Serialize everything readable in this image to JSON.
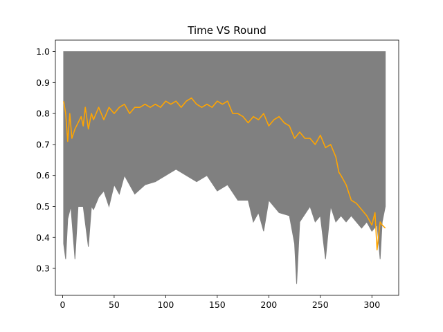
{
  "chart_data": {
    "type": "line",
    "title": "Time VS Round",
    "xlabel": "",
    "ylabel": "",
    "xlim": [
      -7,
      326
    ],
    "ylim": [
      0.213,
      1.037
    ],
    "xticks": [
      0,
      50,
      100,
      150,
      200,
      250,
      300
    ],
    "yticks": [
      0.3,
      0.4,
      0.5,
      0.6,
      0.7,
      0.8,
      0.9,
      1.0
    ],
    "grid": false,
    "legend": "none",
    "band": {
      "color": "#808080",
      "x": [
        1,
        3,
        5,
        8,
        12,
        15,
        20,
        25,
        28,
        30,
        35,
        40,
        45,
        50,
        55,
        60,
        70,
        80,
        90,
        100,
        110,
        120,
        130,
        140,
        150,
        160,
        170,
        180,
        185,
        190,
        195,
        200,
        210,
        220,
        225,
        227,
        230,
        240,
        245,
        250,
        255,
        260,
        265,
        270,
        275,
        280,
        285,
        290,
        295,
        300,
        305,
        308,
        310,
        313
      ],
      "lower": [
        0.38,
        0.33,
        0.46,
        0.5,
        0.33,
        0.5,
        0.5,
        0.37,
        0.5,
        0.49,
        0.53,
        0.55,
        0.5,
        0.57,
        0.54,
        0.6,
        0.54,
        0.57,
        0.58,
        0.6,
        0.62,
        0.6,
        0.58,
        0.6,
        0.55,
        0.57,
        0.52,
        0.52,
        0.45,
        0.48,
        0.42,
        0.52,
        0.48,
        0.47,
        0.38,
        0.25,
        0.45,
        0.5,
        0.45,
        0.47,
        0.33,
        0.5,
        0.45,
        0.47,
        0.45,
        0.47,
        0.45,
        0.43,
        0.45,
        0.42,
        0.44,
        0.33,
        0.45,
        0.5
      ],
      "upper": [
        1.0,
        1.0,
        1.0,
        1.0,
        1.0,
        1.0,
        1.0,
        1.0,
        1.0,
        1.0,
        1.0,
        1.0,
        1.0,
        1.0,
        1.0,
        1.0,
        1.0,
        1.0,
        1.0,
        1.0,
        1.0,
        1.0,
        1.0,
        1.0,
        1.0,
        1.0,
        1.0,
        1.0,
        1.0,
        1.0,
        1.0,
        1.0,
        1.0,
        1.0,
        1.0,
        1.0,
        1.0,
        1.0,
        1.0,
        1.0,
        1.0,
        1.0,
        1.0,
        1.0,
        1.0,
        1.0,
        1.0,
        1.0,
        1.0,
        1.0,
        1.0,
        1.0,
        1.0,
        1.0
      ]
    },
    "series": [
      {
        "color": "#ffa500",
        "x": [
          1,
          3,
          5,
          7,
          9,
          12,
          15,
          18,
          20,
          22,
          25,
          28,
          30,
          35,
          40,
          45,
          50,
          55,
          60,
          65,
          70,
          75,
          80,
          85,
          90,
          95,
          100,
          105,
          110,
          115,
          120,
          125,
          130,
          135,
          140,
          145,
          150,
          155,
          160,
          165,
          170,
          175,
          180,
          185,
          190,
          195,
          200,
          205,
          210,
          215,
          220,
          225,
          230,
          235,
          240,
          245,
          250,
          255,
          260,
          265,
          268,
          270,
          275,
          280,
          285,
          290,
          295,
          300,
          303,
          305,
          308,
          310,
          313
        ],
        "values": [
          0.84,
          0.8,
          0.71,
          0.8,
          0.72,
          0.75,
          0.77,
          0.79,
          0.76,
          0.82,
          0.75,
          0.8,
          0.78,
          0.82,
          0.78,
          0.82,
          0.8,
          0.82,
          0.83,
          0.8,
          0.82,
          0.82,
          0.83,
          0.82,
          0.83,
          0.82,
          0.84,
          0.83,
          0.84,
          0.82,
          0.84,
          0.85,
          0.83,
          0.82,
          0.83,
          0.82,
          0.84,
          0.83,
          0.84,
          0.8,
          0.8,
          0.79,
          0.77,
          0.79,
          0.78,
          0.8,
          0.76,
          0.78,
          0.79,
          0.77,
          0.76,
          0.72,
          0.74,
          0.72,
          0.72,
          0.7,
          0.73,
          0.69,
          0.7,
          0.66,
          0.61,
          0.6,
          0.57,
          0.52,
          0.51,
          0.49,
          0.47,
          0.44,
          0.48,
          0.36,
          0.45,
          0.44,
          0.43
        ]
      }
    ]
  }
}
